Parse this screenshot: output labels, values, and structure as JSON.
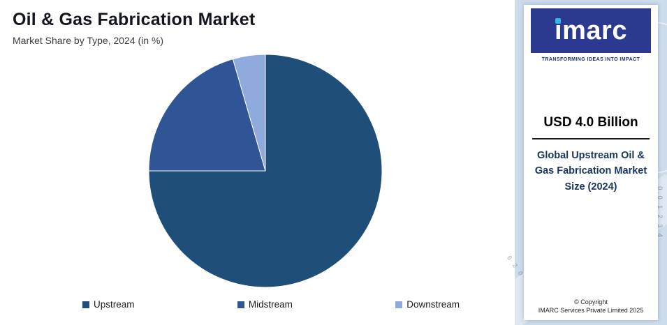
{
  "header": {
    "title": "Oil & Gas Fabrication Market",
    "subtitle": "Market Share by Type, 2024 (in %)"
  },
  "chart_data": {
    "type": "pie",
    "title": "Oil & Gas Fabrication Market",
    "subtitle": "Market Share by Type, 2024 (in %)",
    "categories": [
      "Upstream",
      "Midstream",
      "Downstream"
    ],
    "values": [
      75.0,
      20.5,
      4.5
    ],
    "colors": [
      "#1f4e79",
      "#2f5597",
      "#8faadc"
    ],
    "start_angle_deg": 0,
    "direction": "clockwise",
    "legend_position": "bottom",
    "data_labels": "none"
  },
  "legend": {
    "items": [
      {
        "label": "Upstream",
        "color": "#1f4e79"
      },
      {
        "label": "Midstream",
        "color": "#2f5597"
      },
      {
        "label": "Downstream",
        "color": "#8faadc"
      }
    ]
  },
  "sidebar": {
    "logo": {
      "text": "imarc",
      "tagline": "TRANSFORMING IDEAS INTO IMPACT",
      "box_color": "#2b3990",
      "dot_color": "#35b4e6"
    },
    "market_size_value": "USD 4.0 Billion",
    "market_size_label": "Global Upstream Oil & Gas Fabrication Market Size (2024)",
    "copyright_line1": "© Copyright",
    "copyright_line2": "IMARC Services Private Limited 2025",
    "decor_numbers_top": "0.0 1 2 3 4",
    "decor_numbers_bottom": "6 2 0 4 8"
  }
}
